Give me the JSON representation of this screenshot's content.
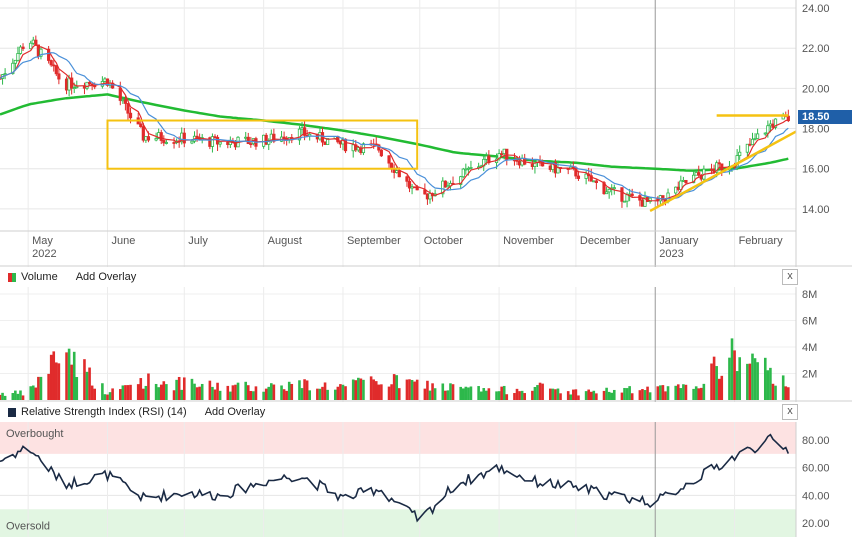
{
  "price_panel": {
    "y_ticks": [
      "24.00",
      "22.00",
      "20.00",
      "18.00",
      "16.00",
      "14.00"
    ],
    "last_price": "18.50",
    "x_labels": [
      {
        "label": "May",
        "sub": "2022"
      },
      {
        "label": "June",
        "sub": ""
      },
      {
        "label": "July",
        "sub": ""
      },
      {
        "label": "August",
        "sub": ""
      },
      {
        "label": "September",
        "sub": ""
      },
      {
        "label": "October",
        "sub": ""
      },
      {
        "label": "November",
        "sub": ""
      },
      {
        "label": "December",
        "sub": ""
      },
      {
        "label": "January",
        "sub": "2023"
      },
      {
        "label": "February",
        "sub": ""
      }
    ]
  },
  "volume_panel": {
    "title": "Volume",
    "add_overlay": "Add Overlay",
    "y_ticks": [
      "8M",
      "6M",
      "4M",
      "2M"
    ],
    "close_icon": "x"
  },
  "rsi_panel": {
    "title": "Relative Strength Index (RSI) (14)",
    "add_overlay": "Add Overlay",
    "y_ticks": [
      "80.00",
      "60.00",
      "40.00",
      "20.00"
    ],
    "overbought_label": "Overbought",
    "oversold_label": "Oversold",
    "close_icon": "x"
  },
  "colors": {
    "up": "#2db84b",
    "down": "#e02b2b",
    "sma_long": "#22bb33",
    "sma_short": "#e02b2b",
    "sma_mid": "#4a90d9",
    "annotation": "#f5c211",
    "rsi_line": "#1a2a44",
    "price_tag": "#1f5fa8"
  },
  "chart_data": {
    "type": "line",
    "y_range_price": [
      12.9,
      24.4
    ],
    "y_range_volume_millions": [
      0,
      8.6
    ],
    "y_range_rsi": [
      10,
      93
    ],
    "x": [
      "2022-04-20",
      "2022-05-01",
      "2022-05-15",
      "2022-06-01",
      "2022-06-15",
      "2022-07-01",
      "2022-07-15",
      "2022-08-01",
      "2022-08-15",
      "2022-09-01",
      "2022-09-15",
      "2022-10-01",
      "2022-10-15",
      "2022-11-01",
      "2022-11-15",
      "2022-12-01",
      "2022-12-15",
      "2023-01-01",
      "2023-01-15",
      "2023-02-01",
      "2023-02-15",
      "2023-02-22"
    ],
    "series": [
      {
        "values": [
          20.5,
          22.5,
          20.2,
          20.4,
          17.6,
          17.5,
          17.3,
          17.4,
          17.8,
          17.2,
          17.0,
          14.5,
          15.5,
          16.8,
          16.2,
          15.8,
          14.8,
          14.2,
          15.5,
          16.4,
          18.2,
          18.5
        ]
      },
      {
        "values": [
          18.7,
          19.2,
          19.5,
          19.7,
          19.3,
          18.9,
          18.6,
          18.4,
          18.2,
          17.9,
          17.6,
          17.2,
          16.8,
          16.6,
          16.4,
          16.3,
          16.1,
          16.0,
          15.9,
          16.0,
          16.3,
          16.5
        ]
      },
      {
        "values": [
          null,
          0.5,
          4.0,
          0.5,
          1.5,
          1.2,
          1.0,
          1.0,
          1.2,
          1.0,
          1.5,
          1.2,
          0.9,
          0.7,
          1.0,
          0.6,
          0.7,
          0.8,
          0.9,
          3.5,
          2.0,
          1.2
        ]
      },
      {
        "values": [
          65,
          75,
          48,
          55,
          38,
          42,
          40,
          50,
          55,
          38,
          45,
          22,
          48,
          60,
          50,
          46,
          40,
          35,
          50,
          68,
          80,
          73
        ]
      }
    ]
  }
}
